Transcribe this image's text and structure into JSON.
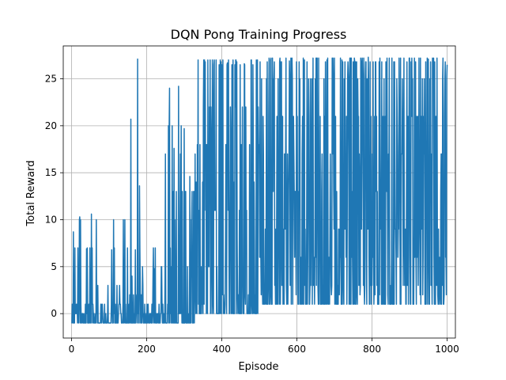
{
  "chart_data": {
    "type": "line",
    "title": "DQN Pong Training Progress",
    "xlabel": "Episode",
    "ylabel": "Total Reward",
    "xlim": [
      -22,
      1022
    ],
    "ylim": [
      -2.6,
      28.5
    ],
    "xticks": [
      0,
      200,
      400,
      600,
      800,
      1000
    ],
    "yticks": [
      0,
      5,
      10,
      15,
      20,
      25
    ],
    "grid": true,
    "series": [
      {
        "color": "#1f77b4",
        "phases": [
          {
            "start": 0,
            "end": 150,
            "baseline": -1,
            "values": [
              0,
              1,
              3,
              7,
              10,
              1,
              0,
              7,
              1,
              0,
              1,
              0,
              1,
              1,
              3,
              1
            ],
            "spike_prob": 0.35,
            "spikes": [
              [
                5,
                8.7
              ],
              [
                22,
                10.3
              ],
              [
                40,
                6.9
              ],
              [
                53,
                10.6
              ],
              [
                107,
                6.8
              ],
              [
                128,
                3
              ]
            ]
          },
          {
            "start": 150,
            "end": 250,
            "baseline": -1,
            "values": [
              0,
              1,
              3,
              5,
              7,
              1,
              0,
              2,
              4
            ],
            "spike_prob": 0.4,
            "spikes": [
              [
                158,
                20.7
              ],
              [
                176,
                27.1
              ],
              [
                181,
                13.6
              ],
              [
                170,
                6.8
              ],
              [
                220,
                4.8
              ],
              [
                240,
                5
              ]
            ]
          },
          {
            "start": 250,
            "end": 330,
            "baseline": -1,
            "values": [
              1,
              3,
              5,
              7,
              10,
              13,
              17,
              20,
              24
            ],
            "spike_prob": 0.5,
            "spikes": [
              [
                273,
                17.6
              ],
              [
                285,
                24.2
              ],
              [
                300,
                19.7
              ],
              [
                315,
                14.6
              ]
            ]
          },
          {
            "start": 330,
            "end": 500,
            "baseline": 0,
            "values": [
              2,
              5,
              8,
              11,
              14,
              18,
              22,
              26.5,
              27
            ],
            "spike_prob": 0.55,
            "spikes": [
              [
                337,
                27
              ],
              [
                356,
                26.8
              ],
              [
                380,
                27
              ],
              [
                398,
                26.8
              ],
              [
                415,
                26.7
              ],
              [
                440,
                26.8
              ],
              [
                460,
                26.6
              ]
            ]
          },
          {
            "start": 500,
            "end": 1000,
            "baseline": 1,
            "values": [
              3,
              6,
              9,
              13,
              17,
              21,
              25,
              26.8,
              27.2
            ],
            "spike_prob": 0.7,
            "spikes": [
              [
                530,
                27
              ],
              [
                580,
                26.9
              ],
              [
                620,
                27
              ],
              [
                680,
                27
              ],
              [
                720,
                27
              ],
              [
                790,
                27.3
              ],
              [
                840,
                27.2
              ],
              [
                900,
                27.2
              ],
              [
                950,
                27.1
              ],
              [
                1000,
                26.5
              ]
            ]
          }
        ]
      }
    ]
  }
}
